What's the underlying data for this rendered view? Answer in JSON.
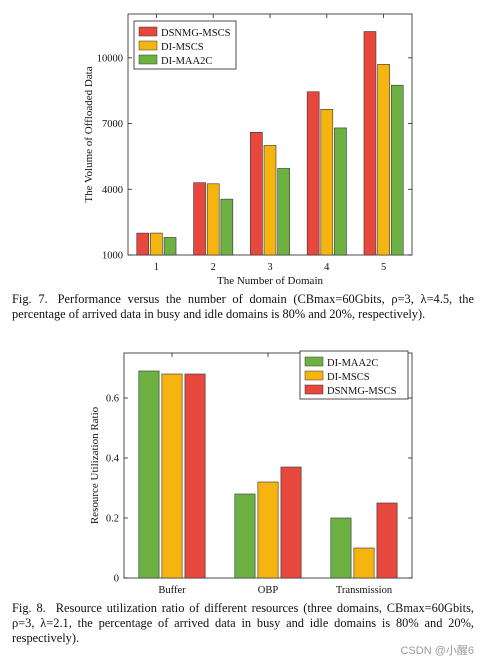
{
  "chart_data": [
    {
      "type": "bar",
      "categories": [
        "1",
        "2",
        "3",
        "4",
        "5"
      ],
      "series": [
        {
          "name": "DSNMG-MSCS",
          "color": "#e8473d",
          "values": [
            2000,
            4300,
            6600,
            8450,
            11200
          ]
        },
        {
          "name": "DI-MSCS",
          "color": "#f5b40f",
          "values": [
            2000,
            4250,
            6000,
            7650,
            9700
          ]
        },
        {
          "name": "DI-MAA2C",
          "color": "#6eb143",
          "values": [
            1800,
            3550,
            4950,
            6800,
            8750
          ]
        }
      ],
      "xlabel": "The Number of Domain",
      "ylabel": "The Volume of Offloaded Data",
      "yticks": [
        "1000",
        "4000",
        "7000",
        "10000"
      ],
      "ylim": [
        1000,
        12000
      ],
      "legend_position": "top-left",
      "grid": false
    },
    {
      "type": "bar",
      "categories": [
        "Buffer",
        "OBP",
        "Transmission"
      ],
      "series": [
        {
          "name": "DI-MAA2C",
          "color": "#6eb143",
          "values": [
            0.69,
            0.28,
            0.2
          ]
        },
        {
          "name": "DI-MSCS",
          "color": "#f5b40f",
          "values": [
            0.68,
            0.32,
            0.1
          ]
        },
        {
          "name": "DSNMG-MSCS",
          "color": "#e8473d",
          "values": [
            0.68,
            0.37,
            0.25
          ]
        }
      ],
      "xlabel": "",
      "ylabel": "Resource Utilization Ratio",
      "yticks": [
        "0",
        "0.2",
        "0.4",
        "0.6"
      ],
      "ylim": [
        0,
        0.75
      ],
      "legend_position": "top-right",
      "grid": false
    }
  ],
  "captions": {
    "fig7_label": "Fig. 7.",
    "fig7_text": "Performance versus the number of domain (CBmax=60Gbits, ρ=3, λ=4.5, the percentage of arrived data in busy and idle domains is 80% and 20%, respectively).",
    "fig8_label": "Fig. 8.",
    "fig8_text": "Resource utilization ratio of different resources (three domains, CBmax=60Gbits, ρ=3, λ=2.1, the percentage of arrived data in busy and idle domains is 80% and 20%, respectively)."
  },
  "watermark": "CSDN @小醒6"
}
